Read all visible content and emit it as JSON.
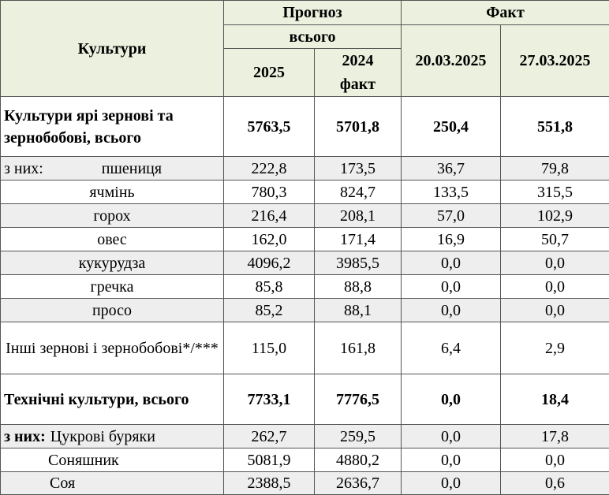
{
  "header": {
    "crops": "Культури",
    "forecast": "Прогноз",
    "total": "всього",
    "year2025": "2025",
    "year2024": "2024 факт",
    "fact": "Факт",
    "date1": "20.03.2025",
    "date2": "27.03.2025"
  },
  "rows": [
    {
      "label": "Культури ярі зернові та зернобобові, всього",
      "values": [
        "5763,5",
        "5701,8",
        "250,4",
        "551,8"
      ],
      "bold": true
    },
    {
      "prefix": "з них:",
      "label": "пшениця",
      "values": [
        "222,8",
        "173,5",
        "36,7",
        "79,8"
      ]
    },
    {
      "label": "ячмінь",
      "values": [
        "780,3",
        "824,7",
        "133,5",
        "315,5"
      ]
    },
    {
      "label": "горох",
      "values": [
        "216,4",
        "208,1",
        "57,0",
        "102,9"
      ]
    },
    {
      "label": "овес",
      "values": [
        "162,0",
        "171,4",
        "16,9",
        "50,7"
      ]
    },
    {
      "label": "кукурудза",
      "values": [
        "4096,2",
        "3985,5",
        "0,0",
        "0,0"
      ]
    },
    {
      "label": "гречка",
      "values": [
        "85,8",
        "88,8",
        "0,0",
        "0,0"
      ]
    },
    {
      "label": "просо",
      "values": [
        "85,2",
        "88,1",
        "0,0",
        "0,0"
      ]
    },
    {
      "label": "Інші зернові і зернобобові*/***",
      "values": [
        "115,0",
        "161,8",
        "6,4",
        "2,9"
      ]
    },
    {
      "label": "Технічні культури, всього",
      "values": [
        "7733,1",
        "7776,5",
        "0,0",
        "18,4"
      ],
      "bold": true
    },
    {
      "prefix": "з них:",
      "label": "Цукрові буряки",
      "values": [
        "262,7",
        "259,5",
        "0,0",
        "17,8"
      ]
    },
    {
      "label": "Соняшник",
      "values": [
        "5081,9",
        "4880,2",
        "0,0",
        "0,0"
      ]
    },
    {
      "label": "Соя",
      "values": [
        "2388,5",
        "2636,7",
        "0,0",
        "0,6"
      ]
    }
  ]
}
